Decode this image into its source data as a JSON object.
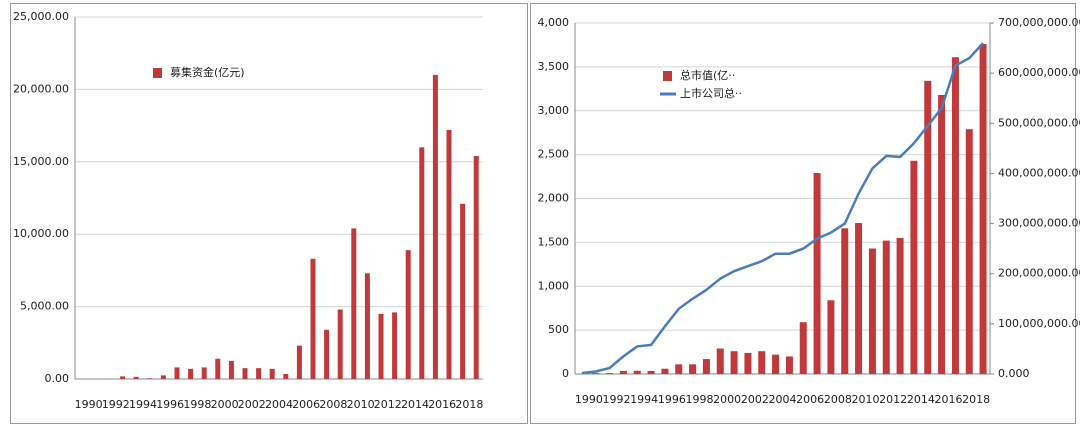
{
  "chart_data": [
    {
      "type": "bar",
      "categories": [
        "1990",
        null,
        "1992",
        null,
        "1994",
        null,
        "1996",
        null,
        "1998",
        null,
        "2000",
        null,
        "2002",
        null,
        "2004",
        null,
        "2006",
        null,
        "2008",
        null,
        "2010",
        null,
        "2012",
        null,
        "2014",
        null,
        "2016",
        null,
        "2018",
        null
      ],
      "series": [
        {
          "name": "募集资金(亿元)",
          "color": "#c0393b",
          "values": [
            0,
            0,
            0,
            180,
            150,
            50,
            250,
            800,
            700,
            800,
            1400,
            1250,
            750,
            750,
            700,
            350,
            2300,
            8300,
            3400,
            4800,
            10400,
            7300,
            4500,
            4600,
            8900,
            16000,
            21000,
            17200,
            12100,
            15400
          ]
        }
      ],
      "ylim": [
        0,
        25000
      ],
      "yticks": [
        {
          "value": 0,
          "label": "0.00"
        },
        {
          "value": 5000,
          "label": "5,000.00"
        },
        {
          "value": 10000,
          "label": "10,000.00"
        },
        {
          "value": 15000,
          "label": "15,000.00"
        },
        {
          "value": 20000,
          "label": "20,000.00"
        },
        {
          "value": 25000,
          "label": "25,000.00"
        }
      ],
      "grid": true
    },
    {
      "type": "bar_line",
      "categories": [
        "1990",
        null,
        "1992",
        null,
        "1994",
        null,
        "1996",
        null,
        "1998",
        null,
        "2000",
        null,
        "2002",
        null,
        "2004",
        null,
        "2006",
        null,
        "2008",
        null,
        "2010",
        null,
        "2012",
        null,
        "2014",
        null,
        "2016",
        null,
        "2018",
        null
      ],
      "series": [
        {
          "name": "总市值(亿··",
          "color": "#c0393b",
          "kind": "bar",
          "values": [
            3,
            10,
            10,
            35,
            37,
            35,
            60,
            110,
            110,
            170,
            290,
            260,
            240,
            260,
            220,
            200,
            590,
            2290,
            840,
            1660,
            1720,
            1430,
            1520,
            1550,
            2430,
            3340,
            3180,
            3610,
            2790,
            3760
          ]
        },
        {
          "name": "上市公司总··",
          "color": "#4a7ebb",
          "kind": "line",
          "axis": "y2",
          "values": [
            2000000,
            5000000,
            12000000,
            35000000,
            55000000,
            58000000,
            95000000,
            130000000,
            150000000,
            168000000,
            190000000,
            205000000,
            215000000,
            225000000,
            240000000,
            240000000,
            250000000,
            270000000,
            282000000,
            300000000,
            360000000,
            410000000,
            435000000,
            433000000,
            460000000,
            495000000,
            530000000,
            615000000,
            630000000,
            660000000
          ]
        }
      ],
      "ylim": [
        0,
        4000
      ],
      "yticks": [
        0,
        500,
        {
          "value": 1000,
          "label": "1,000"
        },
        {
          "value": 1500,
          "label": "1,500"
        },
        {
          "value": 2000,
          "label": "2,000"
        },
        {
          "value": 2500,
          "label": "2,500"
        },
        {
          "value": 3000,
          "label": "3,000"
        },
        {
          "value": 3500,
          "label": "3,500"
        },
        {
          "value": 4000,
          "label": "4,000"
        }
      ],
      "y2lim": [
        0,
        700000000
      ],
      "y2ticks": [
        {
          "value": 0,
          "label": "0.000"
        },
        {
          "value": 100000000,
          "label": "100,000,000.000"
        },
        {
          "value": 200000000,
          "label": "200,000,000.000"
        },
        {
          "value": 300000000,
          "label": "300,000,000.000"
        },
        {
          "value": 400000000,
          "label": "400,000,000.000"
        },
        {
          "value": 500000000,
          "label": "500,000,000.000"
        },
        {
          "value": 600000000,
          "label": "600,000,000.000"
        },
        {
          "value": 700000000,
          "label": "700,000,000.000"
        }
      ],
      "grid": true
    }
  ]
}
